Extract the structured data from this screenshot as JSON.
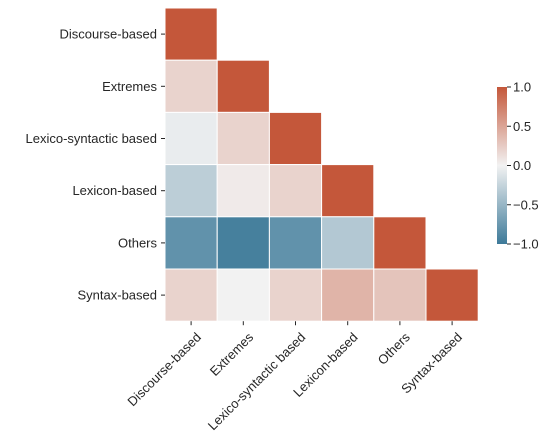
{
  "chart_data": {
    "type": "heatmap",
    "title": "",
    "xlabel": "",
    "ylabel": "",
    "rows": [
      "Discourse-based",
      "Extremes",
      "Lexico-syntactic based",
      "Lexicon-based",
      "Others",
      "Syntax-based"
    ],
    "cols": [
      "Discourse-based",
      "Extremes",
      "Lexico-syntactic based",
      "Lexicon-based",
      "Others",
      "Syntax-based"
    ],
    "mask": "upper-triangle",
    "values": [
      [
        1.0,
        null,
        null,
        null,
        null,
        null
      ],
      [
        0.2,
        1.0,
        null,
        null,
        null,
        null
      ],
      [
        -0.05,
        0.2,
        1.0,
        null,
        null,
        null
      ],
      [
        -0.3,
        0.05,
        0.2,
        1.0,
        null,
        null
      ],
      [
        -0.8,
        -0.95,
        -0.8,
        -0.35,
        1.0,
        null
      ],
      [
        0.2,
        0.0,
        0.2,
        0.4,
        0.3,
        1.0
      ]
    ],
    "colorbar": {
      "vmin": -1.0,
      "vmax": 1.0,
      "ticks": [
        1.0,
        0.5,
        0.0,
        -0.5,
        -1.0
      ],
      "tick_labels": [
        "1.0",
        "0.5",
        "0.0",
        "−0.5",
        "−1.0"
      ],
      "colors": {
        "low": "#3d7a99",
        "mid": "#f2f2f2",
        "high": "#c4573a"
      }
    }
  }
}
